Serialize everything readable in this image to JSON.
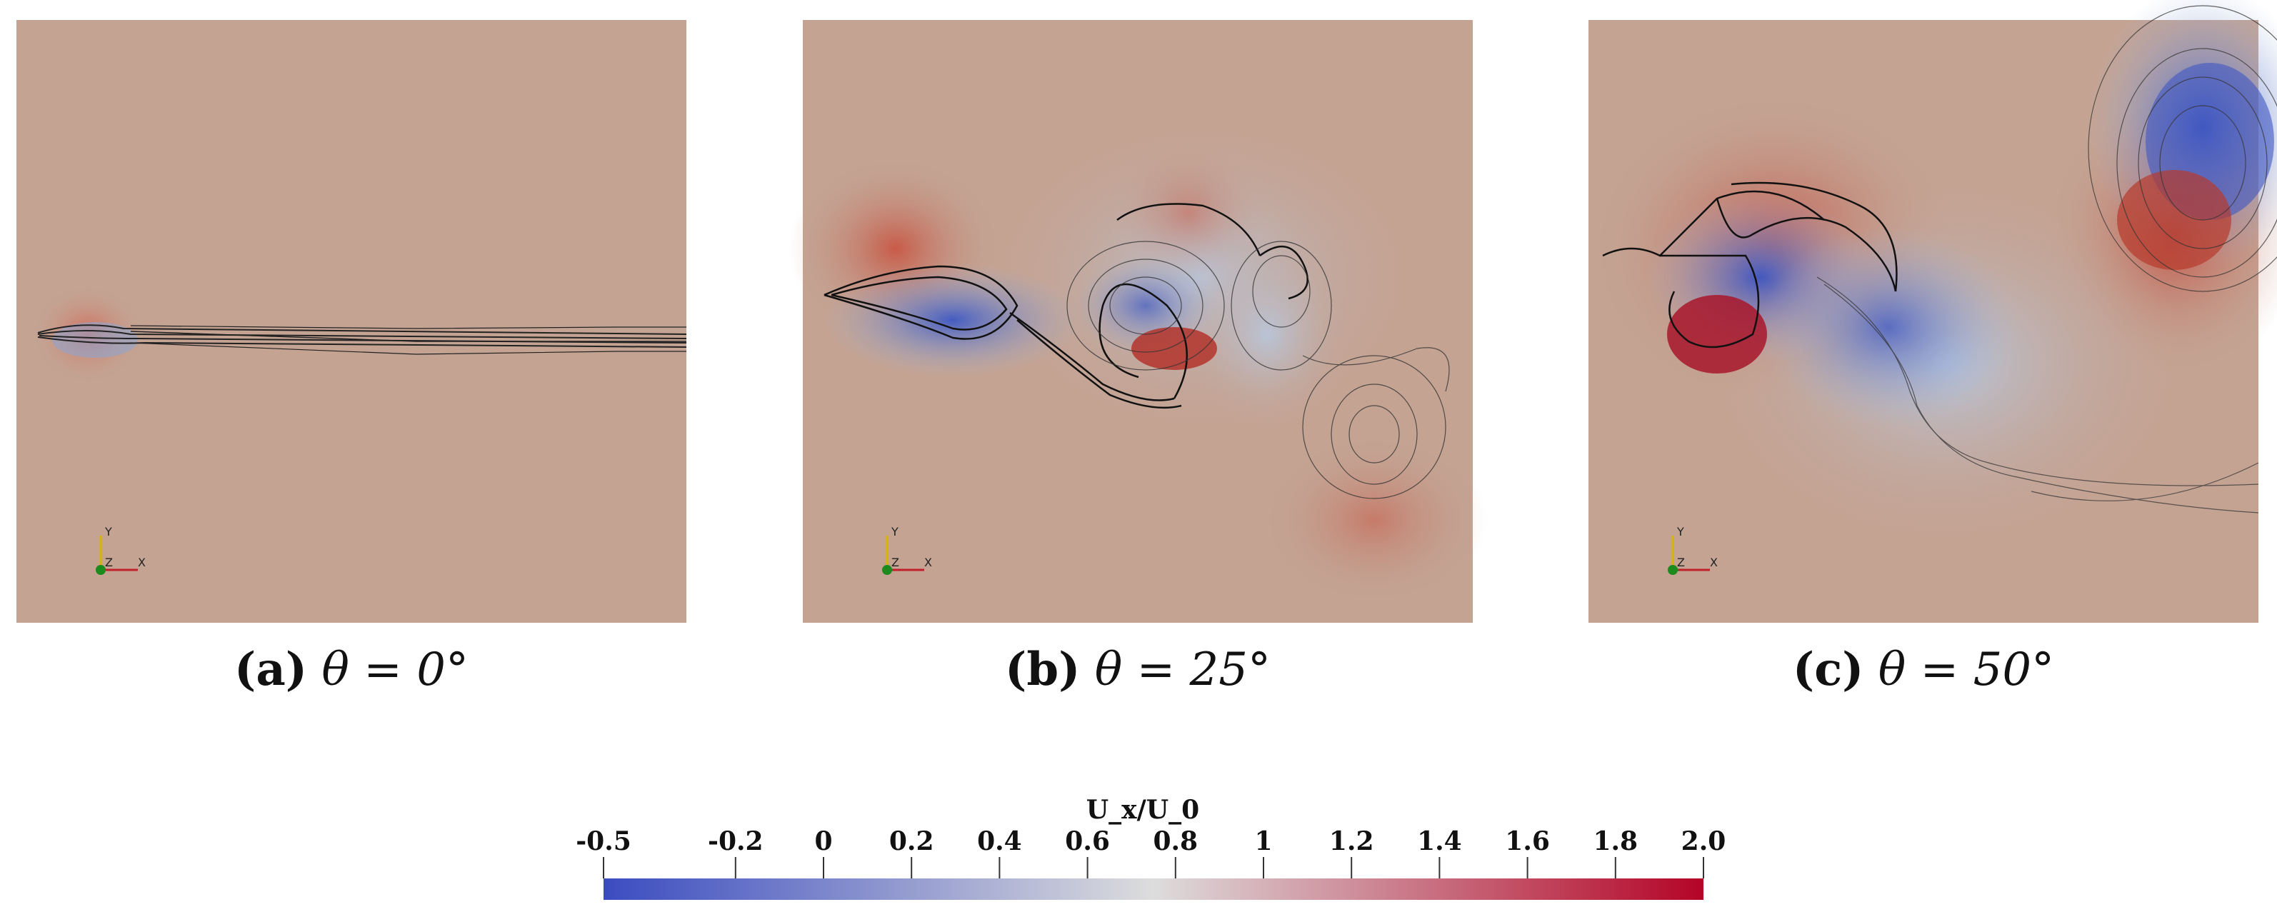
{
  "captions": [
    {
      "letter": "(a)",
      "equation": "θ = 0°"
    },
    {
      "letter": "(b)",
      "equation": "θ = 25°"
    },
    {
      "letter": "(c)",
      "equation": "θ = 50°"
    }
  ],
  "axes_triad": {
    "y": "Y",
    "z": "Z",
    "x": "X"
  },
  "colorbar": {
    "title": "U_x/U_0",
    "range": [
      -0.5,
      2.0
    ],
    "ticks": [
      "-0.5",
      "-0.2",
      "0",
      "0.2",
      "0.4",
      "0.6",
      "0.8",
      "1",
      "1.2",
      "1.4",
      "1.6",
      "1.8",
      "2.0"
    ],
    "colors": {
      "low": "#3b4cc0",
      "mid": "#dddddd",
      "high": "#b40426"
    }
  }
}
